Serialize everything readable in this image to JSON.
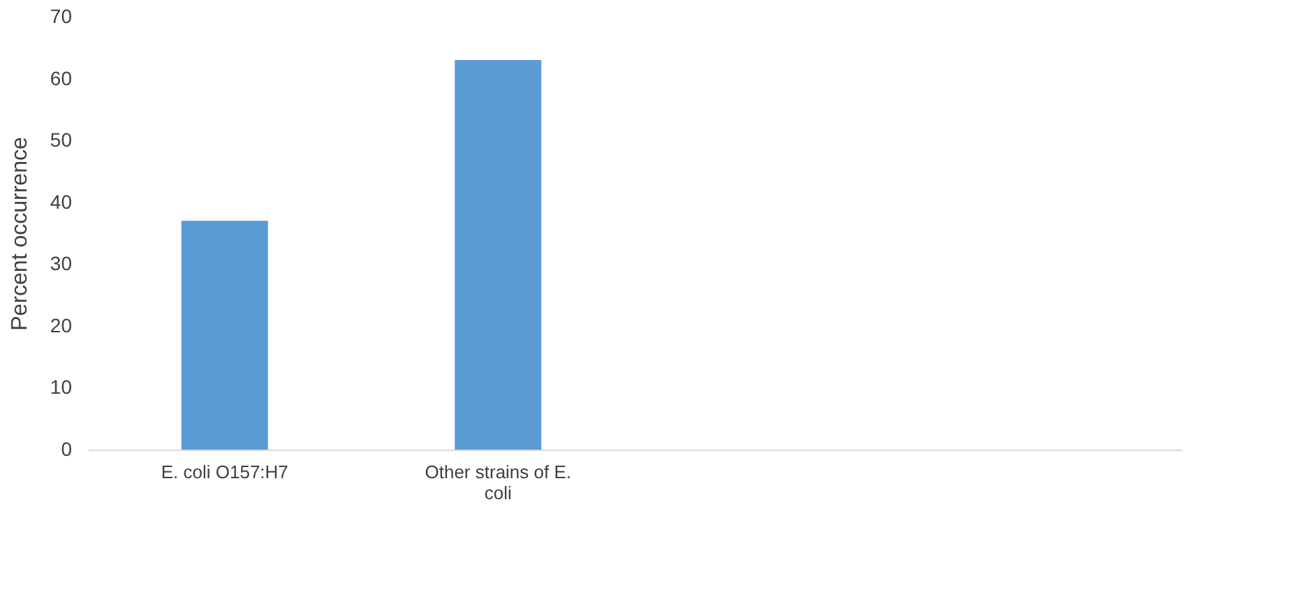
{
  "chart_data": {
    "type": "bar",
    "ylabel": "Percent occurrence",
    "categories": [
      "E. coli O157:H7",
      "Other strains of E. coli",
      null,
      null
    ],
    "values": [
      37,
      63,
      null,
      null
    ],
    "color": "#5b9bd5",
    "ylim": [
      0,
      70
    ],
    "yticks": [
      0,
      10,
      20,
      30,
      40,
      50,
      60,
      70
    ],
    "grid": false
  }
}
